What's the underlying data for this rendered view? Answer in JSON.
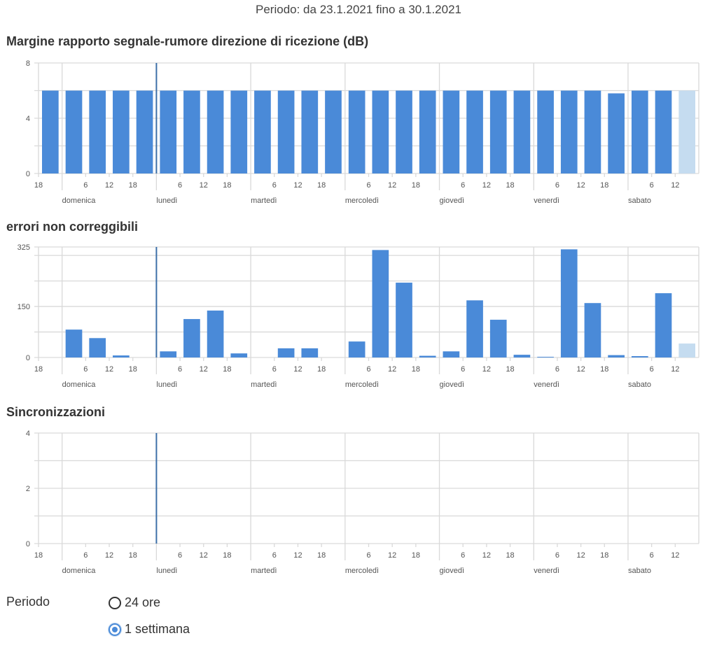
{
  "header": {
    "period_text": "Periodo: da 23.1.2021 fino a 30.1.2021"
  },
  "colors": {
    "bar": "#4a8ad8",
    "bar_partial": "#c5dcf0",
    "grid": "#d9d9d9",
    "marker": "#3d6fa8"
  },
  "chart_data": [
    {
      "type": "bar",
      "title": "Margine rapporto segnale-rumore direzione di ricezione (dB)",
      "xlabel": "",
      "ylabel": "",
      "ylim": [
        0,
        8
      ],
      "y_gridlines": [
        0,
        2,
        4,
        6,
        8
      ],
      "y_tick_labels": [
        {
          "v": 0,
          "label": "0"
        },
        {
          "v": 4,
          "label": "4"
        },
        {
          "v": 8,
          "label": "8"
        }
      ],
      "bin_hours": 6,
      "x_range_hours": [
        0,
        168
      ],
      "values": [
        6,
        6,
        6,
        6,
        6,
        6,
        6,
        6,
        6,
        6,
        6,
        6,
        6,
        6,
        6,
        6,
        6,
        6,
        6,
        6,
        6,
        6,
        6,
        6,
        5.8,
        6,
        6,
        6
      ],
      "partial_last": true
    },
    {
      "type": "bar",
      "title": "errori non correggibili",
      "xlabel": "",
      "ylabel": "",
      "ylim": [
        0,
        325
      ],
      "y_gridlines": [
        0,
        75,
        150,
        225,
        300,
        325
      ],
      "y_tick_labels": [
        {
          "v": 0,
          "label": "0"
        },
        {
          "v": 150,
          "label": "150"
        },
        {
          "v": 325,
          "label": "325"
        }
      ],
      "bin_hours": 6,
      "x_range_hours": [
        0,
        168
      ],
      "values": [
        0,
        82,
        57,
        6,
        0,
        18,
        113,
        138,
        12,
        0,
        27,
        27,
        0,
        47,
        316,
        220,
        5,
        18,
        168,
        111,
        8,
        2,
        318,
        160,
        7,
        4,
        189,
        41
      ],
      "partial_last": true
    },
    {
      "type": "bar",
      "title": "Sincronizzazioni",
      "xlabel": "",
      "ylabel": "",
      "ylim": [
        0,
        4
      ],
      "y_gridlines": [
        0,
        1,
        2,
        3,
        4
      ],
      "y_tick_labels": [
        {
          "v": 0,
          "label": "0"
        },
        {
          "v": 2,
          "label": "2"
        },
        {
          "v": 4,
          "label": "4"
        }
      ],
      "bin_hours": 6,
      "x_range_hours": [
        0,
        168
      ],
      "values": [],
      "partial_last": false
    }
  ],
  "x_axis": {
    "hour_ticks": [
      {
        "x": 0,
        "label": "18"
      },
      {
        "x": 12,
        "label": "6"
      },
      {
        "x": 18,
        "label": "12"
      },
      {
        "x": 24,
        "label": "18"
      },
      {
        "x": 36,
        "label": "6"
      },
      {
        "x": 42,
        "label": "12"
      },
      {
        "x": 48,
        "label": "18"
      },
      {
        "x": 60,
        "label": "6"
      },
      {
        "x": 66,
        "label": "12"
      },
      {
        "x": 72,
        "label": "18"
      },
      {
        "x": 84,
        "label": "6"
      },
      {
        "x": 90,
        "label": "12"
      },
      {
        "x": 96,
        "label": "18"
      },
      {
        "x": 108,
        "label": "6"
      },
      {
        "x": 114,
        "label": "12"
      },
      {
        "x": 120,
        "label": "18"
      },
      {
        "x": 132,
        "label": "6"
      },
      {
        "x": 138,
        "label": "12"
      },
      {
        "x": 144,
        "label": "18"
      },
      {
        "x": 156,
        "label": "6"
      },
      {
        "x": 162,
        "label": "12"
      }
    ],
    "days": [
      {
        "x": 6,
        "label": "domenica"
      },
      {
        "x": 30,
        "label": "lunedì"
      },
      {
        "x": 54,
        "label": "martedì"
      },
      {
        "x": 78,
        "label": "mercoledì"
      },
      {
        "x": 102,
        "label": "giovedì"
      },
      {
        "x": 126,
        "label": "venerdì"
      },
      {
        "x": 150,
        "label": "sabato"
      }
    ],
    "marker_x": 30
  },
  "period_selector": {
    "label": "Periodo",
    "options": [
      {
        "label": "24 ore",
        "selected": false
      },
      {
        "label": "1 settimana",
        "selected": true
      }
    ]
  }
}
